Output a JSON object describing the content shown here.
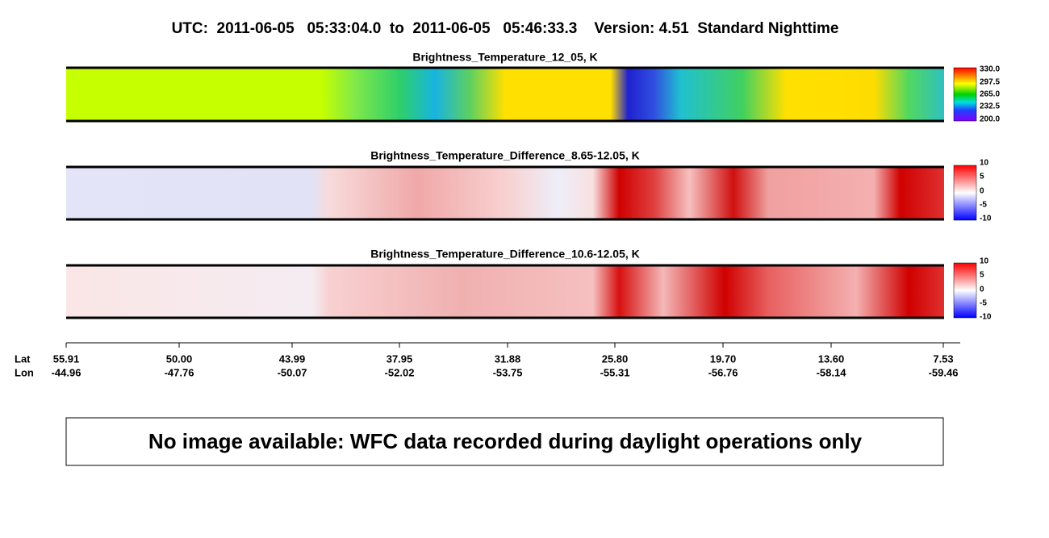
{
  "header": {
    "title": "UTC:  2011-06-05   05:33:04.0  to  2011-06-05   05:46:33.3    Version: 4.51  Standard Nighttime"
  },
  "panels": [
    {
      "title": "Brightness_Temperature_12_05, K",
      "colorbar_labels": [
        "330.0",
        "297.5",
        "265.0",
        "232.5",
        "200.0"
      ]
    },
    {
      "title": "Brightness_Temperature_Difference_8.65-12.05, K",
      "colorbar_labels": [
        "10",
        "5",
        "0",
        "-5",
        "-10"
      ]
    },
    {
      "title": "Brightness_Temperature_Difference_10.6-12.05, K",
      "colorbar_labels": [
        "10",
        "5",
        "0",
        "-5",
        "-10"
      ]
    }
  ],
  "axis": {
    "lat_label": "Lat",
    "lon_label": "Lon",
    "lat": [
      "55.91",
      "50.00",
      "43.99",
      "37.95",
      "31.88",
      "25.80",
      "19.70",
      "13.60",
      "7.53"
    ],
    "lon": [
      "-44.96",
      "-47.76",
      "-50.07",
      "-52.02",
      "-53.75",
      "-55.31",
      "-56.76",
      "-58.14",
      "-59.46"
    ]
  },
  "message": "No image available: WFC data recorded during daylight operations only"
}
